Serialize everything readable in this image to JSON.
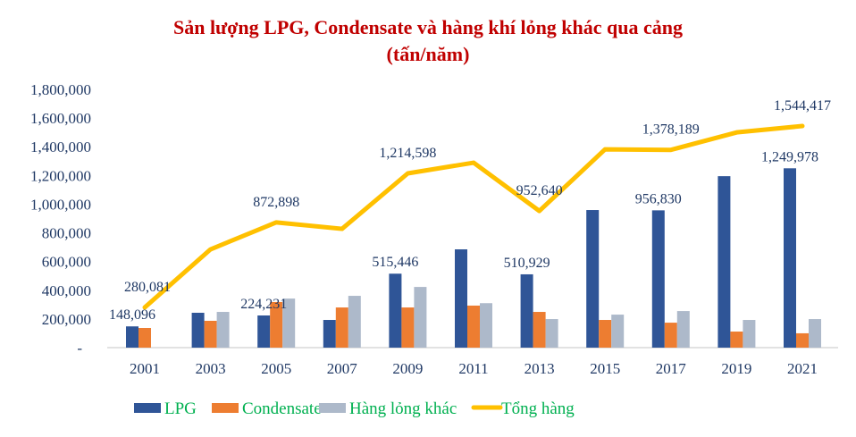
{
  "chart_data": {
    "type": "bar+line",
    "title": "Sản lượng LPG, Condensate và hàng khí lỏng khác qua cảng",
    "subtitle": "(tấn/năm)",
    "categories": [
      "2001",
      "2003",
      "2005",
      "2007",
      "2009",
      "2011",
      "2013",
      "2015",
      "2017",
      "2019",
      "2021"
    ],
    "ylim": [
      0,
      1800000
    ],
    "yticks": [
      0,
      200000,
      400000,
      600000,
      800000,
      1000000,
      1200000,
      1400000,
      1600000,
      1800000
    ],
    "ytick_labels": [
      "-",
      "200,000",
      "400,000",
      "600,000",
      "800,000",
      "1,000,000",
      "1,200,000",
      "1,400,000",
      "1,600,000",
      "1,800,000"
    ],
    "grid": false,
    "legend_position": "bottom",
    "series": [
      {
        "name": "LPG",
        "type": "bar",
        "color": "#2f5597",
        "values": [
          148096,
          243000,
          224231,
          193000,
          515446,
          685000,
          510929,
          959000,
          956830,
          1195000,
          1249978
        ]
      },
      {
        "name": "Condensate",
        "type": "bar",
        "color": "#ed7d31",
        "values": [
          137000,
          187000,
          318000,
          280000,
          280000,
          293000,
          249000,
          193000,
          174000,
          112000,
          100000
        ]
      },
      {
        "name": "Hàng lỏng khác",
        "type": "bar",
        "color": "#adb9ca",
        "values": [
          0,
          249000,
          342000,
          361000,
          423000,
          310000,
          199000,
          230000,
          255000,
          193000,
          199000
        ]
      },
      {
        "name": "Tổng hàng",
        "type": "line",
        "color": "#ffc000",
        "values": [
          280081,
          685000,
          872898,
          828000,
          1214598,
          1289000,
          952640,
          1382000,
          1378189,
          1500000,
          1544417
        ]
      }
    ],
    "data_labels": {
      "LPG": [
        {
          "category": "2001",
          "text": "148,096"
        },
        {
          "category": "2005",
          "text": "224,231"
        },
        {
          "category": "2009",
          "text": "515,446"
        },
        {
          "category": "2013",
          "text": "510,929"
        },
        {
          "category": "2017",
          "text": "956,830"
        },
        {
          "category": "2021",
          "text": "1,249,978"
        }
      ],
      "Tổng hàng": [
        {
          "category": "2001",
          "text": "280,081"
        },
        {
          "category": "2005",
          "text": "872,898"
        },
        {
          "category": "2009",
          "text": "1,214,598"
        },
        {
          "category": "2013",
          "text": "952,640"
        },
        {
          "category": "2017",
          "text": "1,378,189"
        },
        {
          "category": "2021",
          "text": "1,544,417"
        }
      ]
    }
  }
}
